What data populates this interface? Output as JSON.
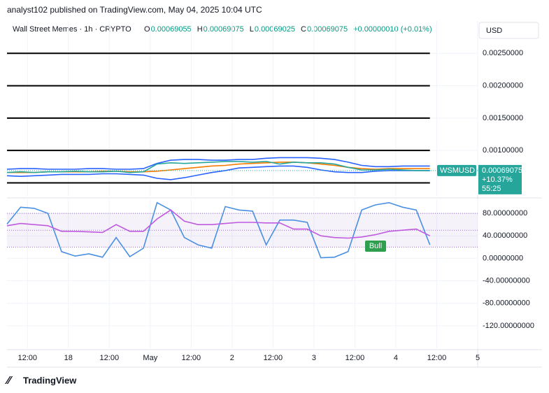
{
  "header": {
    "published": "analyst102 published on TradingView.com, May 04, 2025 10:04 UTC",
    "symbol": "Wall Street Memes · 1h · CRYPTO",
    "ohlc": [
      {
        "key": "O",
        "value": "0.00069055"
      },
      {
        "key": "H",
        "value": "0.00069075"
      },
      {
        "key": "L",
        "value": "0.00069025"
      },
      {
        "key": "C",
        "value": "0.00069075"
      }
    ],
    "change": "+0.00000010 (+0.01%)",
    "currency": "USD",
    "brand": "TradingView"
  },
  "chart_data": [
    {
      "type": "line",
      "x": [
        0,
        4,
        8,
        12,
        16,
        20,
        24,
        28,
        32,
        36,
        40,
        44,
        48,
        52,
        56,
        60,
        64,
        68,
        72,
        76,
        80,
        84,
        88,
        92,
        96,
        100,
        104,
        108,
        112,
        116,
        120,
        124
      ],
      "xlim": [
        0,
        138
      ],
      "ylim": [
        0.0003,
        0.003
      ],
      "yticks": [
        {
          "value": 0.0025,
          "label": "0.00250000"
        },
        {
          "value": 0.002,
          "label": "0.00200000"
        },
        {
          "value": 0.0015,
          "label": "0.00150000"
        },
        {
          "value": 0.001,
          "label": "0.00100000"
        }
      ],
      "levels": [
        0.0025,
        0.002,
        0.0015,
        0.001,
        0.0005
      ],
      "grid": true,
      "series": [
        {
          "color": "#2962ff",
          "values": [
            0.00071,
            0.00072,
            0.00072,
            0.00071,
            0.00071,
            0.00071,
            0.00072,
            0.00072,
            0.00071,
            0.00071,
            0.00072,
            0.0008,
            0.00085,
            0.00086,
            0.00086,
            0.00085,
            0.00085,
            0.00086,
            0.00086,
            0.00088,
            0.00089,
            0.00089,
            0.00089,
            0.00088,
            0.00086,
            0.00082,
            0.00077,
            0.00075,
            0.00075,
            0.00076,
            0.00076,
            0.00076
          ]
        },
        {
          "color": "#2962ff",
          "values": [
            0.00061,
            0.0006,
            0.00061,
            0.00062,
            0.00063,
            0.00063,
            0.00063,
            0.00064,
            0.00064,
            0.00063,
            0.00062,
            0.00057,
            0.00055,
            0.00058,
            0.00062,
            0.00066,
            0.00069,
            0.00073,
            0.00074,
            0.00075,
            0.00076,
            0.00076,
            0.00074,
            0.0007,
            0.00067,
            0.00066,
            0.00066,
            0.00068,
            0.00069,
            0.00069,
            0.00069,
            0.00069
          ]
        },
        {
          "color": "#f57c00",
          "values": [
            0.00066,
            0.00066,
            0.00066,
            0.00067,
            0.00067,
            0.00067,
            0.00067,
            0.00068,
            0.00068,
            0.00067,
            0.00067,
            0.00068,
            0.0007,
            0.00072,
            0.00074,
            0.00076,
            0.00077,
            0.00079,
            0.0008,
            0.00081,
            0.00082,
            0.00082,
            0.00081,
            0.00079,
            0.00077,
            0.00074,
            0.00072,
            0.00071,
            0.00072,
            0.00072,
            0.00072,
            0.00072
          ]
        },
        {
          "color": "#26a69a",
          "values": [
            0.00066,
            0.00067,
            0.00066,
            0.00067,
            0.00067,
            0.00068,
            0.00067,
            0.00067,
            0.00068,
            0.00066,
            0.00067,
            0.00079,
            0.00081,
            0.0008,
            0.00081,
            0.00082,
            0.00083,
            0.00083,
            0.00082,
            0.00083,
            0.00079,
            0.00082,
            0.00081,
            0.00081,
            0.00079,
            0.00074,
            0.0007,
            0.0007,
            0.00071,
            0.0007,
            0.00069,
            0.00069
          ]
        }
      ],
      "price_tag": {
        "symbol": "WSMUSD",
        "price": "0.00069075",
        "change": "+10.37%",
        "countdown": "55:25"
      }
    },
    {
      "type": "line",
      "x": [
        0,
        4,
        8,
        12,
        16,
        20,
        24,
        28,
        32,
        36,
        40,
        44,
        48,
        52,
        56,
        60,
        64,
        68,
        72,
        76,
        80,
        84,
        88,
        92,
        96,
        100,
        104,
        108,
        112,
        116,
        120,
        124
      ],
      "xlim": [
        0,
        138
      ],
      "xticks": [
        {
          "value": 6,
          "label": "12:00"
        },
        18,
        {
          "value": 30,
          "label": "12:00"
        },
        {
          "value": 42,
          "label": "May"
        },
        {
          "value": 54,
          "label": "12:00"
        },
        {
          "value": 66,
          "label": "2"
        },
        {
          "value": 78,
          "label": "12:00"
        },
        {
          "value": 90,
          "label": "3"
        },
        {
          "value": 102,
          "label": "12:00"
        },
        {
          "value": 114,
          "label": "4"
        },
        {
          "value": 126,
          "label": "12:00"
        },
        {
          "value": 138,
          "label": "5"
        }
      ],
      "ylim": [
        -160,
        105
      ],
      "yticks": [
        {
          "value": 80,
          "label": "80.00000000"
        },
        {
          "value": 40,
          "label": "40.00000000"
        },
        {
          "value": 0,
          "label": "0.00000000"
        },
        {
          "value": -40,
          "label": "-40.00000000"
        },
        {
          "value": -80,
          "label": "-80.00000000"
        },
        {
          "value": -120,
          "label": "-120.00000000"
        }
      ],
      "bands": [
        20,
        50,
        80
      ],
      "grid": true,
      "series": [
        {
          "color": "#4a90e2",
          "values": [
            61,
            91,
            89,
            80,
            12,
            4,
            8,
            2,
            37,
            3,
            18,
            99,
            86,
            37,
            24,
            18,
            92,
            86,
            84,
            24,
            68,
            68,
            64,
            1,
            2,
            12,
            86,
            95,
            99,
            91,
            86,
            24
          ]
        },
        {
          "color": "#c05be0",
          "values": [
            58,
            62,
            60,
            58,
            48,
            48,
            47,
            46,
            60,
            48,
            48,
            70,
            86,
            66,
            60,
            60,
            62,
            64,
            64,
            63,
            63,
            52,
            52,
            40,
            37,
            36,
            38,
            42,
            48,
            50,
            52,
            40
          ]
        }
      ],
      "annotation": "Bull"
    }
  ]
}
